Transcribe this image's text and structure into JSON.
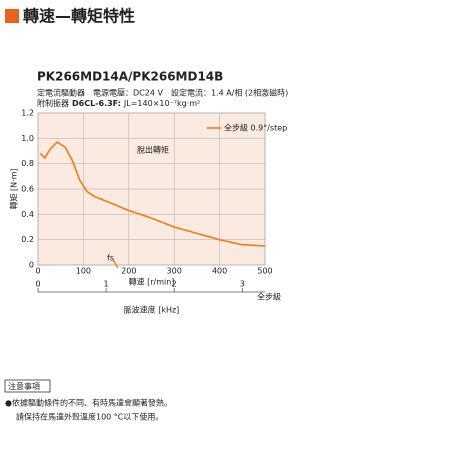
{
  "header": {
    "title": "轉速—轉矩特性",
    "model": "PK266MD14A/PK266MD14B",
    "conditions": [
      "定電流驅動器　電源電壓：DC24 V　設定電流：1.4 A/相 (2相激磁時)"
    ],
    "damper": [
      "附制振器",
      "D6CL-6.3F:",
      "JL=140×10⁻⁷kg·m²"
    ]
  },
  "chart_data": {
    "type": "line",
    "x": [
      5,
      15,
      26,
      42,
      60,
      75,
      92,
      108,
      125,
      160,
      200,
      250,
      300,
      350,
      400,
      450,
      500
    ],
    "series": [
      {
        "name": "全步級 0.9°/step",
        "color": "#f07b1e",
        "values": [
          0.88,
          0.845,
          0.91,
          0.97,
          0.93,
          0.83,
          0.67,
          0.58,
          0.54,
          0.49,
          0.43,
          0.37,
          0.3,
          0.25,
          0.2,
          0.16,
          0.15
        ]
      }
    ],
    "xlim": [
      0,
      500
    ],
    "xticks": [
      0,
      100,
      200,
      300,
      400,
      500
    ],
    "ylim": [
      0,
      1.2
    ],
    "yticks": [
      0,
      0.2,
      0.4,
      0.6,
      0.8,
      {
        "value": 1,
        "label": "1.0"
      },
      1.2
    ],
    "xlabel": "轉速 [r/min]",
    "ylabel": "轉矩 [N·m]",
    "x2lim": [
      0,
      3.333
    ],
    "x2ticks": [
      0,
      1,
      2,
      3
    ],
    "x2label": "脈波速度 [kHz]",
    "x2_note": "全步級",
    "annotations": [
      "脫出轉矩",
      "fs"
    ],
    "grid": true,
    "background": "#fbeadf"
  },
  "notes": {
    "title": "注意事項",
    "items": [
      "●依據驅動條件的不同、有時馬達會顯著發熱。",
      "請保持在馬達外殼溫度100 °C以下使用。"
    ]
  }
}
